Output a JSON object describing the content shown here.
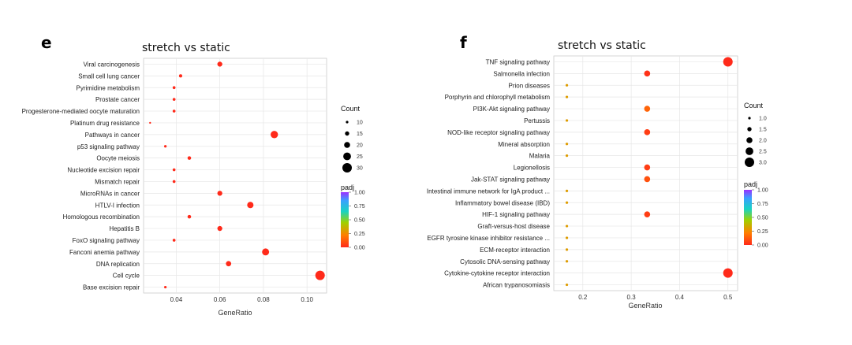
{
  "chart_data": [
    {
      "type": "scatter",
      "panel": "e",
      "title": "stretch vs static",
      "xlabel": "GeneRatio",
      "ylabel": "",
      "xlim": [
        0.025,
        0.109
      ],
      "xticks": [
        0.04,
        0.06,
        0.08,
        0.1
      ],
      "xtick_labels": [
        "0.04",
        "0.06",
        "0.08",
        "0.10"
      ],
      "grid": true,
      "legend_position": "right",
      "size_legend": {
        "title": "Count",
        "values": [
          10,
          15,
          20,
          25,
          30
        ]
      },
      "color_legend": {
        "title": "padj",
        "ticks": [
          "1.00",
          "0.75",
          "0.50",
          "0.25",
          "0.00"
        ]
      },
      "categories": [
        "Viral carcinogenesis",
        "Small cell lung cancer",
        "Pyrimidine metabolism",
        "Prostate cancer",
        "Progesterone-mediated oocyte maturation",
        "Platinum drug resistance",
        "Pathways in cancer",
        "p53 signaling pathway",
        "Oocyte meiosis",
        "Nucleotide excision repair",
        "Mismatch repair",
        "MicroRNAs in cancer",
        "HTLV-I infection",
        "Homologous recombination",
        "Hepatitis B",
        "FoxO signaling pathway",
        "Fanconi anemia pathway",
        "DNA replication",
        "Cell cycle",
        "Base excision repair"
      ],
      "x": [
        0.06,
        0.042,
        0.039,
        0.039,
        0.039,
        0.028,
        0.085,
        0.035,
        0.046,
        0.039,
        0.039,
        0.06,
        0.074,
        0.046,
        0.06,
        0.039,
        0.081,
        0.064,
        0.106,
        0.035
      ],
      "count": [
        17,
        12,
        11,
        11,
        11,
        8,
        24,
        10,
        13,
        11,
        11,
        17,
        21,
        13,
        17,
        11,
        23,
        18,
        30,
        10
      ],
      "padj": [
        0.0,
        0.0,
        0.0,
        0.0,
        0.0,
        0.0,
        0.0,
        0.0,
        0.0,
        0.0,
        0.0,
        0.0,
        0.0,
        0.0,
        0.0,
        0.0,
        0.0,
        0.0,
        0.0,
        0.0
      ]
    },
    {
      "type": "scatter",
      "panel": "f",
      "title": "stretch vs static",
      "xlabel": "GeneRatio",
      "ylabel": "",
      "xlim": [
        0.14,
        0.52
      ],
      "xticks": [
        0.2,
        0.3,
        0.4,
        0.5
      ],
      "xtick_labels": [
        "0.2",
        "0.3",
        "0.4",
        "0.5"
      ],
      "grid": true,
      "legend_position": "right",
      "size_legend": {
        "title": "Count",
        "values": [
          1.0,
          1.5,
          2.0,
          2.5,
          3.0
        ],
        "labels": [
          "1.0",
          "1.5",
          "2.0",
          "2.5",
          "3.0"
        ]
      },
      "color_legend": {
        "title": "padj",
        "ticks": [
          "1.00",
          "0.75",
          "0.50",
          "0.25",
          "0.00"
        ]
      },
      "categories": [
        "TNF signaling pathway",
        "Salmonella infection",
        "Prion diseases",
        "Porphyrin and chlorophyll metabolism",
        "PI3K-Akt signaling pathway",
        "Pertussis",
        "NOD-like receptor signaling pathway",
        "Mineral absorption",
        "Malaria",
        "Legionellosis",
        "Jak-STAT signaling pathway",
        "Intestinal immune network for IgA product ...",
        "Inflammatory bowel disease (IBD)",
        "HIF-1 signaling pathway",
        "Graft-versus-host disease",
        "EGFR tyrosine kinase inhibitor resistance ...",
        "ECM-receptor interaction",
        "Cytosolic DNA-sensing pathway",
        "Cytokine-cytokine receptor interaction",
        "African trypanosomiasis"
      ],
      "x": [
        0.5,
        0.333,
        0.167,
        0.167,
        0.333,
        0.167,
        0.333,
        0.167,
        0.167,
        0.333,
        0.333,
        0.167,
        0.167,
        0.333,
        0.167,
        0.167,
        0.167,
        0.167,
        0.5,
        0.167
      ],
      "count": [
        3,
        2,
        1,
        1,
        2,
        1,
        2,
        1,
        1,
        2,
        2,
        1,
        1,
        2,
        1,
        1,
        1,
        1,
        3,
        1
      ],
      "padj": [
        0.0,
        0.02,
        0.3,
        0.3,
        0.15,
        0.3,
        0.05,
        0.3,
        0.3,
        0.05,
        0.1,
        0.3,
        0.3,
        0.05,
        0.3,
        0.3,
        0.3,
        0.3,
        0.0,
        0.3
      ]
    }
  ]
}
